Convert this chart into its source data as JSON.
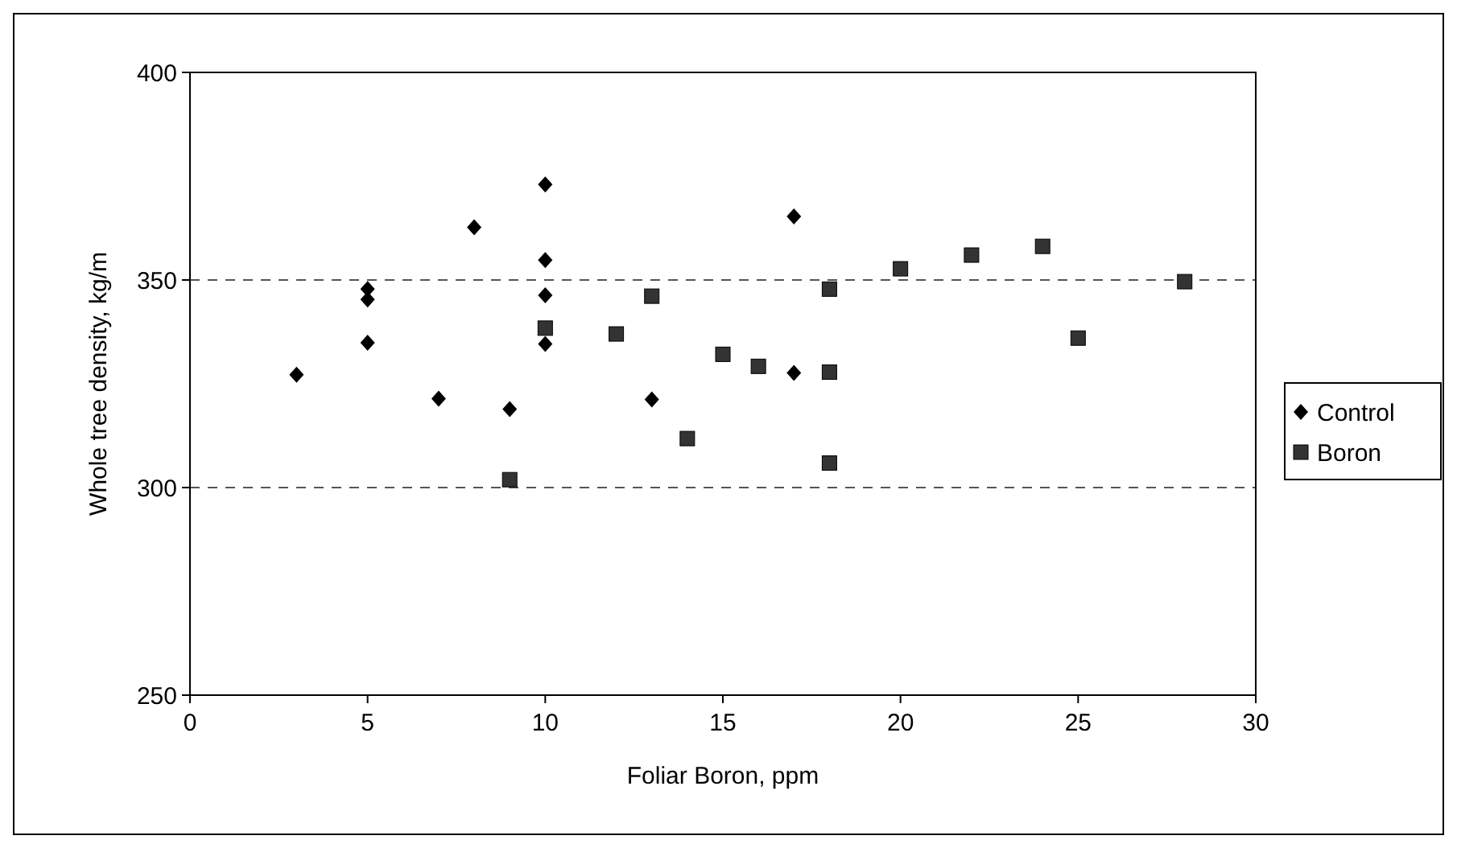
{
  "chart_data": {
    "type": "scatter",
    "xlabel": "Foliar Boron, ppm",
    "ylabel": "Whole tree density, kg/m",
    "xlim": [
      0,
      30
    ],
    "xticks": [
      0,
      5,
      10,
      15,
      20,
      25,
      30
    ],
    "ylim": [
      250,
      400
    ],
    "yticks": [
      250,
      300,
      350,
      400
    ],
    "grid": "y",
    "line_style": "dashed",
    "legend": "right",
    "series": [
      {
        "name": "Control",
        "color": "#000000",
        "marker": "diamond",
        "x": [
          3,
          5,
          5,
          5,
          7,
          8,
          9,
          10,
          10,
          10,
          10,
          13,
          17,
          17
        ],
        "values": [
          327.2,
          347.8,
          345.3,
          334.9,
          321.4,
          362.7,
          318.9,
          373,
          354.8,
          346.3,
          334.6,
          321.2,
          365.3,
          327.6
        ]
      },
      {
        "name": "Boron",
        "color": "#333333",
        "marker": "square",
        "x": [
          9,
          10,
          12,
          13,
          14,
          15,
          16,
          18,
          18,
          18,
          20,
          22,
          24,
          25,
          28
        ],
        "values": [
          301.9,
          338.4,
          337,
          346.1,
          311.8,
          332.1,
          329.2,
          347.8,
          327.8,
          305.9,
          352.7,
          356,
          358.1,
          336,
          349.6
        ]
      }
    ]
  }
}
